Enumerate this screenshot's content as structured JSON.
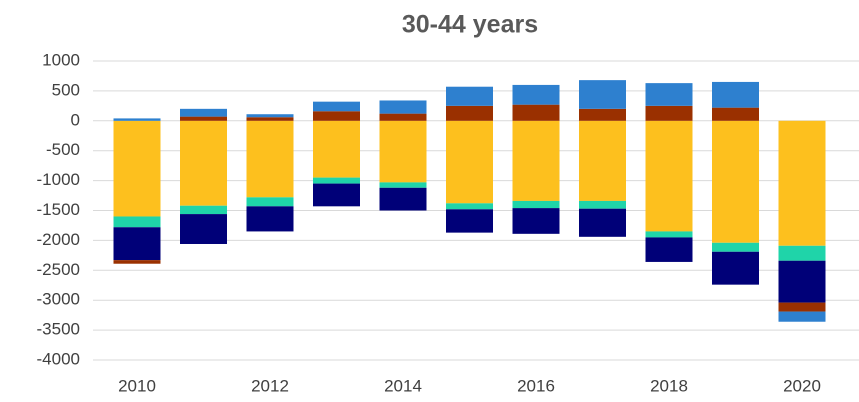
{
  "chart_data": {
    "type": "stacked_bar",
    "title": "30-44 years",
    "categories": [
      "2010",
      null,
      "2012",
      null,
      "2014",
      null,
      "2016",
      null,
      "2018",
      null,
      "2020"
    ],
    "series": [
      {
        "color": "#fdc01e",
        "values": [
          -1600,
          -1420,
          -1280,
          -950,
          -1030,
          -1380,
          -1340,
          -1340,
          -1850,
          -2040,
          -2090
        ]
      },
      {
        "color": "#1fd4a9",
        "values": [
          -180,
          -140,
          -150,
          -100,
          -90,
          -100,
          -120,
          -130,
          -100,
          -150,
          -250
        ]
      },
      {
        "color": "#000078",
        "values": [
          -550,
          -500,
          -420,
          -380,
          -380,
          -390,
          -430,
          -470,
          -410,
          -550,
          -700
        ]
      },
      {
        "color": "#9a3000",
        "values": [
          -60,
          70,
          60,
          160,
          120,
          250,
          270,
          200,
          250,
          220,
          -150
        ]
      },
      {
        "color": "#2e80cf",
        "values": [
          40,
          130,
          50,
          160,
          220,
          320,
          330,
          480,
          380,
          430,
          -170
        ]
      }
    ],
    "ylim": [
      -4000,
      1000
    ],
    "yticks": [
      1000,
      500,
      0,
      -500,
      -1000,
      -1500,
      -2000,
      -2500,
      -3000,
      -3500,
      -4000
    ],
    "grid": true
  }
}
